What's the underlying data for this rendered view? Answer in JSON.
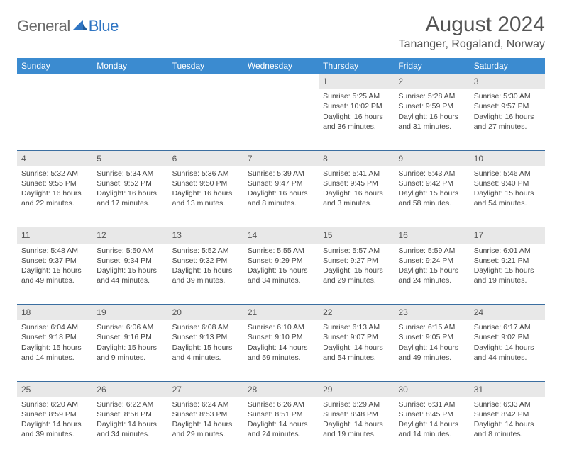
{
  "logo": {
    "gray": "General",
    "blue": "Blue"
  },
  "title": "August 2024",
  "location": "Tananger, Rogaland, Norway",
  "weekday_labels": [
    "Sunday",
    "Monday",
    "Tuesday",
    "Wednesday",
    "Thursday",
    "Friday",
    "Saturday"
  ],
  "colors": {
    "header_bg": "#3b8bd0",
    "daynum_bg": "#e8e8e8",
    "rule": "#3b6ea0",
    "logo_blue": "#2f75c3",
    "logo_gray": "#6b6b6b",
    "text": "#444"
  },
  "weeks": [
    [
      null,
      null,
      null,
      null,
      {
        "n": "1",
        "sr": "5:25 AM",
        "ss": "10:02 PM",
        "dl": "16 hours and 36 minutes."
      },
      {
        "n": "2",
        "sr": "5:28 AM",
        "ss": "9:59 PM",
        "dl": "16 hours and 31 minutes."
      },
      {
        "n": "3",
        "sr": "5:30 AM",
        "ss": "9:57 PM",
        "dl": "16 hours and 27 minutes."
      }
    ],
    [
      {
        "n": "4",
        "sr": "5:32 AM",
        "ss": "9:55 PM",
        "dl": "16 hours and 22 minutes."
      },
      {
        "n": "5",
        "sr": "5:34 AM",
        "ss": "9:52 PM",
        "dl": "16 hours and 17 minutes."
      },
      {
        "n": "6",
        "sr": "5:36 AM",
        "ss": "9:50 PM",
        "dl": "16 hours and 13 minutes."
      },
      {
        "n": "7",
        "sr": "5:39 AM",
        "ss": "9:47 PM",
        "dl": "16 hours and 8 minutes."
      },
      {
        "n": "8",
        "sr": "5:41 AM",
        "ss": "9:45 PM",
        "dl": "16 hours and 3 minutes."
      },
      {
        "n": "9",
        "sr": "5:43 AM",
        "ss": "9:42 PM",
        "dl": "15 hours and 58 minutes."
      },
      {
        "n": "10",
        "sr": "5:46 AM",
        "ss": "9:40 PM",
        "dl": "15 hours and 54 minutes."
      }
    ],
    [
      {
        "n": "11",
        "sr": "5:48 AM",
        "ss": "9:37 PM",
        "dl": "15 hours and 49 minutes."
      },
      {
        "n": "12",
        "sr": "5:50 AM",
        "ss": "9:34 PM",
        "dl": "15 hours and 44 minutes."
      },
      {
        "n": "13",
        "sr": "5:52 AM",
        "ss": "9:32 PM",
        "dl": "15 hours and 39 minutes."
      },
      {
        "n": "14",
        "sr": "5:55 AM",
        "ss": "9:29 PM",
        "dl": "15 hours and 34 minutes."
      },
      {
        "n": "15",
        "sr": "5:57 AM",
        "ss": "9:27 PM",
        "dl": "15 hours and 29 minutes."
      },
      {
        "n": "16",
        "sr": "5:59 AM",
        "ss": "9:24 PM",
        "dl": "15 hours and 24 minutes."
      },
      {
        "n": "17",
        "sr": "6:01 AM",
        "ss": "9:21 PM",
        "dl": "15 hours and 19 minutes."
      }
    ],
    [
      {
        "n": "18",
        "sr": "6:04 AM",
        "ss": "9:18 PM",
        "dl": "15 hours and 14 minutes."
      },
      {
        "n": "19",
        "sr": "6:06 AM",
        "ss": "9:16 PM",
        "dl": "15 hours and 9 minutes."
      },
      {
        "n": "20",
        "sr": "6:08 AM",
        "ss": "9:13 PM",
        "dl": "15 hours and 4 minutes."
      },
      {
        "n": "21",
        "sr": "6:10 AM",
        "ss": "9:10 PM",
        "dl": "14 hours and 59 minutes."
      },
      {
        "n": "22",
        "sr": "6:13 AM",
        "ss": "9:07 PM",
        "dl": "14 hours and 54 minutes."
      },
      {
        "n": "23",
        "sr": "6:15 AM",
        "ss": "9:05 PM",
        "dl": "14 hours and 49 minutes."
      },
      {
        "n": "24",
        "sr": "6:17 AM",
        "ss": "9:02 PM",
        "dl": "14 hours and 44 minutes."
      }
    ],
    [
      {
        "n": "25",
        "sr": "6:20 AM",
        "ss": "8:59 PM",
        "dl": "14 hours and 39 minutes."
      },
      {
        "n": "26",
        "sr": "6:22 AM",
        "ss": "8:56 PM",
        "dl": "14 hours and 34 minutes."
      },
      {
        "n": "27",
        "sr": "6:24 AM",
        "ss": "8:53 PM",
        "dl": "14 hours and 29 minutes."
      },
      {
        "n": "28",
        "sr": "6:26 AM",
        "ss": "8:51 PM",
        "dl": "14 hours and 24 minutes."
      },
      {
        "n": "29",
        "sr": "6:29 AM",
        "ss": "8:48 PM",
        "dl": "14 hours and 19 minutes."
      },
      {
        "n": "30",
        "sr": "6:31 AM",
        "ss": "8:45 PM",
        "dl": "14 hours and 14 minutes."
      },
      {
        "n": "31",
        "sr": "6:33 AM",
        "ss": "8:42 PM",
        "dl": "14 hours and 8 minutes."
      }
    ]
  ],
  "labels": {
    "sunrise": "Sunrise: ",
    "sunset": "Sunset: ",
    "daylight": "Daylight: "
  }
}
